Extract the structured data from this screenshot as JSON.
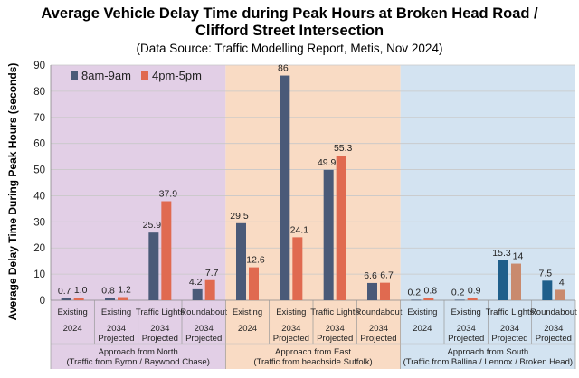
{
  "chart_data": {
    "type": "bar",
    "title_line1": "Average Vehicle Delay Time during Peak Hours at Broken Head Road /",
    "title_line2": "Clifford Street Intersection",
    "subtitle": "(Data Source: Traffic Modelling Report, Metis, Nov 2024)",
    "ylabel": "Average Delay Time During Peak Hours (seconds)",
    "ylim": [
      0,
      90
    ],
    "yticks": [
      "0",
      "10",
      "20",
      "30",
      "40",
      "50",
      "60",
      "70",
      "80",
      "90"
    ],
    "grid": true,
    "legend_position": "top-left",
    "series": [
      {
        "name": "8am-9am",
        "color": "#4a5a78"
      },
      {
        "name": "4pm-5pm",
        "color": "#e06a50"
      }
    ],
    "groups": [
      {
        "label_line1": "Approach from North",
        "label_line2": "(Traffic from Byron / Baywood Chase)",
        "background": "#e2cfe6",
        "categories": [
          {
            "scenario": "Existing",
            "year": [
              "2024"
            ],
            "values": [
              0.7,
              1.0
            ],
            "labels": [
              "0.7",
              "1.0"
            ]
          },
          {
            "scenario": "Existing",
            "year": [
              "2034",
              "Projected"
            ],
            "values": [
              0.8,
              1.2
            ],
            "labels": [
              "0.8",
              "1.2"
            ]
          },
          {
            "scenario": "Traffic Lights",
            "year": [
              "2034",
              "Projected"
            ],
            "values": [
              25.9,
              37.9
            ],
            "labels": [
              "25.9",
              "37.9"
            ]
          },
          {
            "scenario": "Roundabout",
            "year": [
              "2034",
              "Projected"
            ],
            "values": [
              4.2,
              7.7
            ],
            "labels": [
              "4.2",
              "7.7"
            ]
          }
        ]
      },
      {
        "label_line1": "Approach from East",
        "label_line2": "(Traffic from beachside Suffolk)",
        "background": "#f9dbc4",
        "categories": [
          {
            "scenario": "Existing",
            "year": [
              "2024"
            ],
            "values": [
              29.5,
              12.6
            ],
            "labels": [
              "29.5",
              "12.6"
            ]
          },
          {
            "scenario": "Existing",
            "year": [
              "2034",
              "Projected"
            ],
            "values": [
              86,
              24.1
            ],
            "labels": [
              "86",
              "24.1"
            ]
          },
          {
            "scenario": "Traffic Lights",
            "year": [
              "2034",
              "Projected"
            ],
            "values": [
              49.9,
              55.3
            ],
            "labels": [
              "49.9",
              "55.3"
            ]
          },
          {
            "scenario": "Roundabout",
            "year": [
              "2034",
              "Projected"
            ],
            "values": [
              6.6,
              6.7
            ],
            "labels": [
              "6.6",
              "6.7"
            ]
          }
        ]
      },
      {
        "label_line1": "Approach from South",
        "label_line2": "(Traffic from Ballina / Lennox / Broken Head)",
        "background": "#d3e3f1",
        "categories": [
          {
            "scenario": "Existing",
            "year": [
              "2024"
            ],
            "values": [
              0.2,
              0.8
            ],
            "labels": [
              "0.2",
              "0.8"
            ]
          },
          {
            "scenario": "Existing",
            "year": [
              "2034",
              "Projected"
            ],
            "values": [
              0.2,
              0.9
            ],
            "labels": [
              "0.2",
              "0.9"
            ]
          },
          {
            "scenario": "Traffic Lights",
            "year": [
              "2034",
              "Projected"
            ],
            "values": [
              15.3,
              14
            ],
            "labels": [
              "15.3",
              "14"
            ]
          },
          {
            "scenario": "Roundabout",
            "year": [
              "2034",
              "Projected"
            ],
            "values": [
              7.5,
              4
            ],
            "labels": [
              "7.5",
              "4"
            ]
          }
        ]
      }
    ],
    "highlight_colors": {
      "8am-9am": "#1f5f8b",
      "4pm-5pm": "#c98a6e"
    }
  }
}
